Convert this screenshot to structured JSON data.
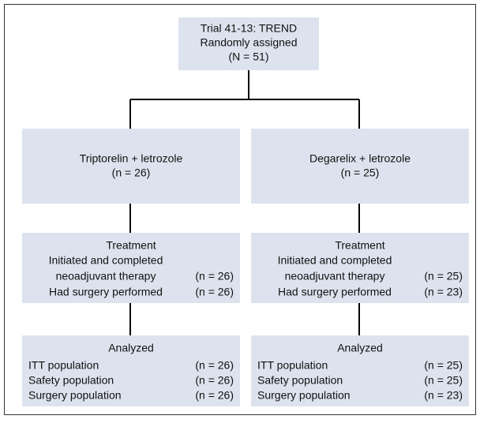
{
  "randomization": {
    "lines": [
      "Trial 41-13: TREND",
      "Randomly assigned",
      "(N = 51)"
    ]
  },
  "arms": [
    {
      "name": "Triptorelin + letrozole",
      "n": "(n = 26)",
      "treatment": {
        "title": "Treatment",
        "rows": [
          {
            "label": [
              "Initiated and completed",
              "neoadjuvant therapy"
            ],
            "n": "(n = 26)"
          },
          {
            "label": [
              "Had surgery performed"
            ],
            "n": "(n = 26)"
          }
        ]
      },
      "analysis": {
        "title": "Analyzed",
        "rows": [
          {
            "label": "ITT population",
            "n": "(n = 26)"
          },
          {
            "label": "Safety population",
            "n": "(n = 26)"
          },
          {
            "label": "Surgery population",
            "n": "(n = 26)"
          }
        ]
      }
    },
    {
      "name": "Degarelix + letrozole",
      "n": "(n = 25)",
      "treatment": {
        "title": "Treatment",
        "rows": [
          {
            "label": [
              "Initiated and completed",
              "neoadjuvant therapy"
            ],
            "n": "(n = 25)"
          },
          {
            "label": [
              "Had surgery performed"
            ],
            "n": "(n = 23)"
          }
        ]
      },
      "analysis": {
        "title": "Analyzed",
        "rows": [
          {
            "label": "ITT population",
            "n": "(n = 25)"
          },
          {
            "label": "Safety population",
            "n": "(n = 25)"
          },
          {
            "label": "Surgery population",
            "n": "(n = 23)"
          }
        ]
      }
    }
  ]
}
